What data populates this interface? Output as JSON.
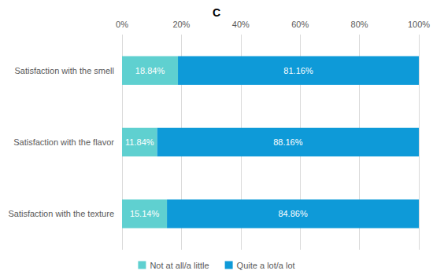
{
  "chart_data": {
    "type": "bar",
    "title": "C",
    "orientation": "horizontal",
    "stacked": true,
    "data_labels": true,
    "grid": true,
    "legend": "bottom",
    "categories": [
      "Satisfaction with the smell",
      "Satisfaction with the flavor",
      "Satisfaction with the texture"
    ],
    "series": [
      {
        "name": "Not at all/a little",
        "color": "#5fd0d0",
        "values": [
          18.84,
          11.84,
          15.14
        ],
        "value_labels": [
          "18.84%",
          "11.84%",
          "15.14%"
        ]
      },
      {
        "name": "Quite a lot/a lot",
        "color": "#0e9ad8",
        "values": [
          81.16,
          88.16,
          84.86
        ],
        "value_labels": [
          "81.16%",
          "88.16%",
          "84.86%"
        ]
      }
    ],
    "xlim": [
      0,
      100
    ],
    "xticks": [
      {
        "value": 0,
        "label": "0%"
      },
      {
        "value": 20,
        "label": "20%"
      },
      {
        "value": 40,
        "label": "40%"
      },
      {
        "value": 60,
        "label": "60%"
      },
      {
        "value": 80,
        "label": "80%"
      },
      {
        "value": 100,
        "label": "100%"
      }
    ]
  }
}
